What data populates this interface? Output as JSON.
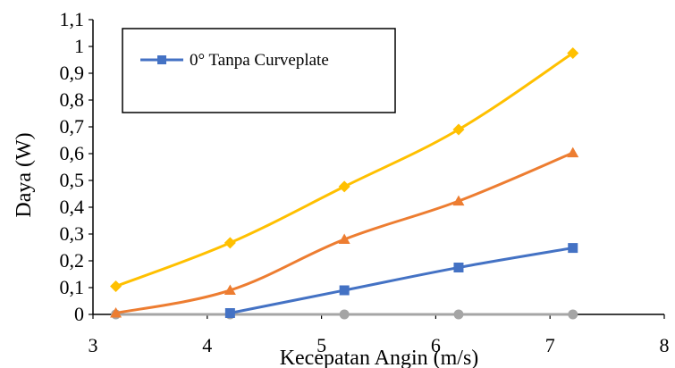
{
  "chart_data": {
    "type": "line",
    "title": "",
    "xlabel": "Kecepatan Angin (m/s)",
    "ylabel": "Daya (W)",
    "xlim": [
      3,
      8
    ],
    "ylim": [
      0,
      1.1
    ],
    "x_ticks": [
      3,
      4,
      5,
      6,
      7,
      8
    ],
    "x_tick_labels": [
      "3",
      "4",
      "5",
      "6",
      "7",
      "8"
    ],
    "y_ticks": [
      0,
      0.1,
      0.2,
      0.3,
      0.4,
      0.5,
      0.6,
      0.7,
      0.8,
      0.9,
      1,
      1.1
    ],
    "y_tick_labels": [
      "0",
      "0,1",
      "0,2",
      "0,3",
      "0,4",
      "0,5",
      "0,6",
      "0,7",
      "0,8",
      "0,9",
      "1",
      "1,1"
    ],
    "grid": false,
    "legend_position": "top-left",
    "series": [
      {
        "name": "0° Tanpa Curveplate",
        "color": "#4472C4",
        "marker": "square",
        "x": [
          4.2,
          5.2,
          6.2,
          7.2
        ],
        "y": [
          0.005,
          0.09,
          0.175,
          0.248
        ]
      },
      {
        "color": "#ED7D31",
        "marker": "triangle",
        "x": [
          3.2,
          4.2,
          5.2,
          6.2,
          7.2
        ],
        "y": [
          0.005,
          0.09,
          0.28,
          0.423,
          0.603
        ]
      },
      {
        "color": "#A5A5A5",
        "marker": "circle",
        "x": [
          3.2,
          4.2,
          5.2,
          6.2,
          7.2
        ],
        "y": [
          0,
          0,
          0,
          0,
          0
        ]
      },
      {
        "color": "#FFC000",
        "marker": "diamond",
        "x": [
          3.2,
          4.2,
          5.2,
          6.2,
          7.2
        ],
        "y": [
          0.105,
          0.267,
          0.477,
          0.69,
          0.975
        ]
      }
    ]
  }
}
